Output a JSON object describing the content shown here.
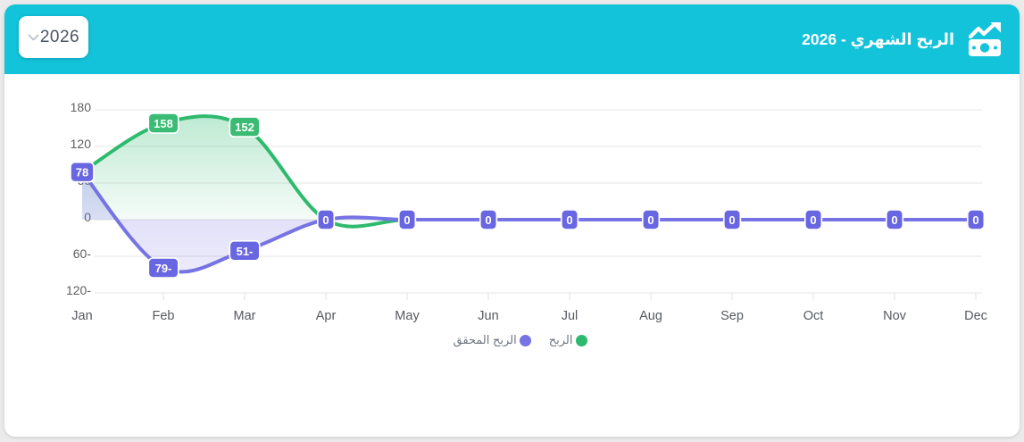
{
  "header": {
    "bg_color": "#13c3da",
    "title": "الربح الشهري - 2026",
    "icon": "money-bill-trend-up-icon",
    "year_select": {
      "value": "2026"
    }
  },
  "chart_data": {
    "type": "area",
    "x_categories": [
      "Jan",
      "Feb",
      "Mar",
      "Apr",
      "May",
      "Jun",
      "Jul",
      "Aug",
      "Sep",
      "Oct",
      "Nov",
      "Dec"
    ],
    "ylim": [
      -120,
      180
    ],
    "ytick_values": [
      180,
      120,
      60,
      0,
      -60,
      -120
    ],
    "ytick_labels": [
      "180",
      "120",
      "60",
      "0",
      "60-",
      "120-"
    ],
    "grid": true,
    "legend_position": "bottom",
    "series": [
      {
        "name": "الربح",
        "color": "#2eba6e",
        "label_bg": "#3abc74",
        "values": [
          78,
          158,
          152,
          0,
          0,
          0,
          0,
          0,
          0,
          0,
          0,
          0
        ],
        "labels": [
          "78",
          "158",
          "152",
          "0",
          "0",
          "0",
          "0",
          "0",
          "0",
          "0",
          "0",
          "0"
        ]
      },
      {
        "name": "الربح المحقق",
        "color": "#7673e4",
        "label_bg": "#6966e1",
        "values": [
          78,
          -79,
          -51,
          0,
          0,
          0,
          0,
          0,
          0,
          0,
          0,
          0
        ],
        "labels": [
          "78",
          "79-",
          "51-",
          "0",
          "0",
          "0",
          "0",
          "0",
          "0",
          "0",
          "0",
          "0"
        ]
      }
    ]
  }
}
